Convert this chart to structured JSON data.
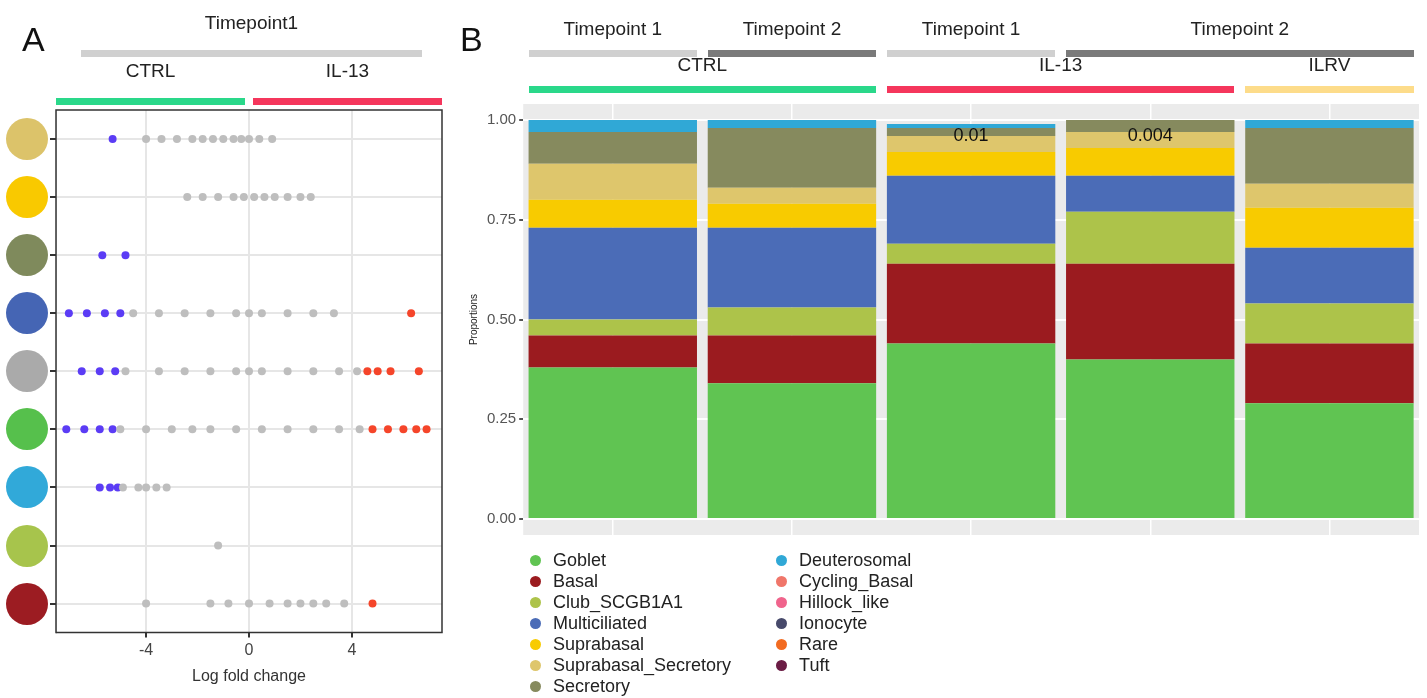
{
  "chart_data": [
    {
      "type": "scatter",
      "title": "A",
      "orientation": "horizontal",
      "xlabel": "Log fold change",
      "annotations": [
        "Timepoint1",
        "CTRL",
        "IL-13"
      ],
      "categories": [
        null,
        null,
        null,
        null,
        null,
        null,
        null,
        null,
        null
      ],
      "xlim": [
        -7.5,
        7.5
      ],
      "xticks": [
        -4,
        0,
        4
      ],
      "grid": true,
      "tick_labels": "x",
      "marker": "circle",
      "legend": false,
      "series": [
        {
          "color": "#bebebe",
          "values": [
            -4.0,
            -2.4,
            null,
            -4.5,
            -4.8,
            -5.0,
            -4.9,
            -1.2,
            -4.0
          ]
        },
        {
          "color": "#bebebe",
          "values": [
            -3.4,
            -1.8,
            null,
            -3.5,
            -3.5,
            -4.0,
            -4.3,
            null,
            -1.5
          ]
        },
        {
          "color": "#bebebe",
          "values": [
            -2.8,
            -1.2,
            null,
            -2.5,
            -2.5,
            -3.0,
            -4.0,
            null,
            -0.8
          ]
        },
        {
          "color": "#bebebe",
          "values": [
            -2.2,
            -0.6,
            null,
            -1.5,
            -1.5,
            -2.2,
            -3.6,
            null,
            0.0
          ]
        },
        {
          "color": "#bebebe",
          "values": [
            -1.8,
            -0.2,
            null,
            -0.5,
            -0.5,
            -1.5,
            -3.2,
            null,
            0.8
          ]
        },
        {
          "color": "#bebebe",
          "values": [
            -1.4,
            0.2,
            null,
            0.0,
            0.0,
            -0.5,
            null,
            null,
            1.5
          ]
        },
        {
          "color": "#bebebe",
          "values": [
            -1.0,
            0.6,
            null,
            0.5,
            0.5,
            0.5,
            null,
            null,
            2.0
          ]
        },
        {
          "color": "#bebebe",
          "values": [
            -0.6,
            1.0,
            null,
            1.5,
            1.5,
            1.5,
            null,
            null,
            2.5
          ]
        },
        {
          "color": "#bebebe",
          "values": [
            -0.3,
            1.5,
            null,
            2.5,
            2.5,
            2.5,
            null,
            null,
            3.0
          ]
        },
        {
          "color": "#bebebe",
          "values": [
            0.0,
            2.0,
            null,
            3.3,
            3.5,
            3.5,
            null,
            null,
            3.7
          ]
        },
        {
          "color": "#bebebe",
          "values": [
            0.4,
            2.4,
            null,
            null,
            4.2,
            4.3,
            null,
            null,
            null
          ]
        },
        {
          "color": "#bebebe",
          "values": [
            0.9,
            null,
            null,
            null,
            null,
            null,
            null,
            null,
            null
          ]
        },
        {
          "color": "#5b3cf5",
          "values": [
            -5.3,
            null,
            -5.7,
            -7.0,
            -6.5,
            -7.1,
            -5.8,
            null,
            null
          ]
        },
        {
          "color": "#5b3cf5",
          "values": [
            null,
            null,
            -4.8,
            -6.3,
            -5.8,
            -6.4,
            -5.4,
            null,
            null
          ]
        },
        {
          "color": "#5b3cf5",
          "values": [
            null,
            null,
            null,
            -5.6,
            -5.2,
            -5.8,
            -5.1,
            null,
            null
          ]
        },
        {
          "color": "#5b3cf5",
          "values": [
            null,
            null,
            null,
            -5.0,
            null,
            -5.3,
            null,
            null,
            null
          ]
        },
        {
          "color": "#f5452a",
          "values": [
            null,
            null,
            null,
            6.3,
            4.6,
            4.8,
            null,
            null,
            4.8
          ]
        },
        {
          "color": "#f5452a",
          "values": [
            null,
            null,
            null,
            null,
            5.0,
            5.4,
            null,
            null,
            null
          ]
        },
        {
          "color": "#f5452a",
          "values": [
            null,
            null,
            null,
            null,
            5.5,
            6.0,
            null,
            null,
            null
          ]
        },
        {
          "color": "#f5452a",
          "values": [
            null,
            null,
            null,
            null,
            6.6,
            6.5,
            null,
            null,
            null
          ]
        },
        {
          "color": "#f5452a",
          "values": [
            null,
            null,
            null,
            null,
            null,
            6.9,
            null,
            null,
            null
          ]
        }
      ]
    },
    {
      "type": "bar",
      "title": "B",
      "stacked": true,
      "ylabel": "Proportions",
      "annotations": [
        "Timepoint 1",
        "Timepoint 2",
        "Timepoint 1",
        "Timepoint 2",
        "CTRL",
        "IL-13",
        "ILRV",
        "0.01",
        "0.004"
      ],
      "categories": [
        null,
        null,
        null,
        null,
        null
      ],
      "ylim": [
        -0.04,
        1.04
      ],
      "yticks": [
        {
          "value": 0,
          "label": "0.00"
        },
        {
          "value": 0.25,
          "label": "0.25"
        },
        {
          "value": 0.5,
          "label": "0.50"
        },
        {
          "value": 0.75,
          "label": "0.75"
        },
        {
          "value": 1,
          "label": "1.00"
        }
      ],
      "grid": true,
      "tick_labels": "y",
      "legend": "bottom",
      "series": [
        {
          "name": "Goblet",
          "color": "#60c452",
          "values": [
            0.38,
            0.34,
            0.44,
            0.4,
            0.29
          ]
        },
        {
          "name": "Basal",
          "color": "#9b1b1f",
          "values": [
            0.08,
            0.12,
            0.2,
            0.24,
            0.15
          ]
        },
        {
          "name": "Club_SCGB1A1",
          "color": "#adc34a",
          "values": [
            0.04,
            0.07,
            0.05,
            0.13,
            0.1
          ]
        },
        {
          "name": "Multiciliated",
          "color": "#4b6cb7",
          "values": [
            0.23,
            0.2,
            0.17,
            0.09,
            0.14
          ]
        },
        {
          "name": "Suprabasal",
          "color": "#f8cb00",
          "values": [
            0.07,
            0.06,
            0.06,
            0.07,
            0.1
          ]
        },
        {
          "name": "Suprabasal_Secretory",
          "color": "#dec66c",
          "values": [
            0.09,
            0.04,
            0.04,
            0.04,
            0.06
          ]
        },
        {
          "name": "Secretory",
          "color": "#868a5e",
          "values": [
            0.08,
            0.15,
            0.02,
            0.03,
            0.14
          ]
        },
        {
          "name": "Deuterosomal",
          "color": "#30a8d6",
          "values": [
            0.03,
            0.02,
            0.01,
            0.0,
            0.02
          ]
        },
        {
          "name": "Cycling_Basal",
          "color": "#f0766a",
          "values": [
            0,
            0,
            0,
            0,
            0
          ]
        },
        {
          "name": "Hillock_like",
          "color": "#f0648c",
          "values": [
            0,
            0,
            0,
            0,
            0
          ]
        },
        {
          "name": "Ionocyte",
          "color": "#474a6b",
          "values": [
            0,
            0,
            0,
            0,
            0
          ]
        },
        {
          "name": "Rare",
          "color": "#f26b21",
          "values": [
            0,
            0,
            0,
            0,
            0
          ]
        },
        {
          "name": "Tuft",
          "color": "#6b1d45",
          "values": [
            0,
            0,
            0,
            0,
            0
          ]
        }
      ]
    }
  ]
}
